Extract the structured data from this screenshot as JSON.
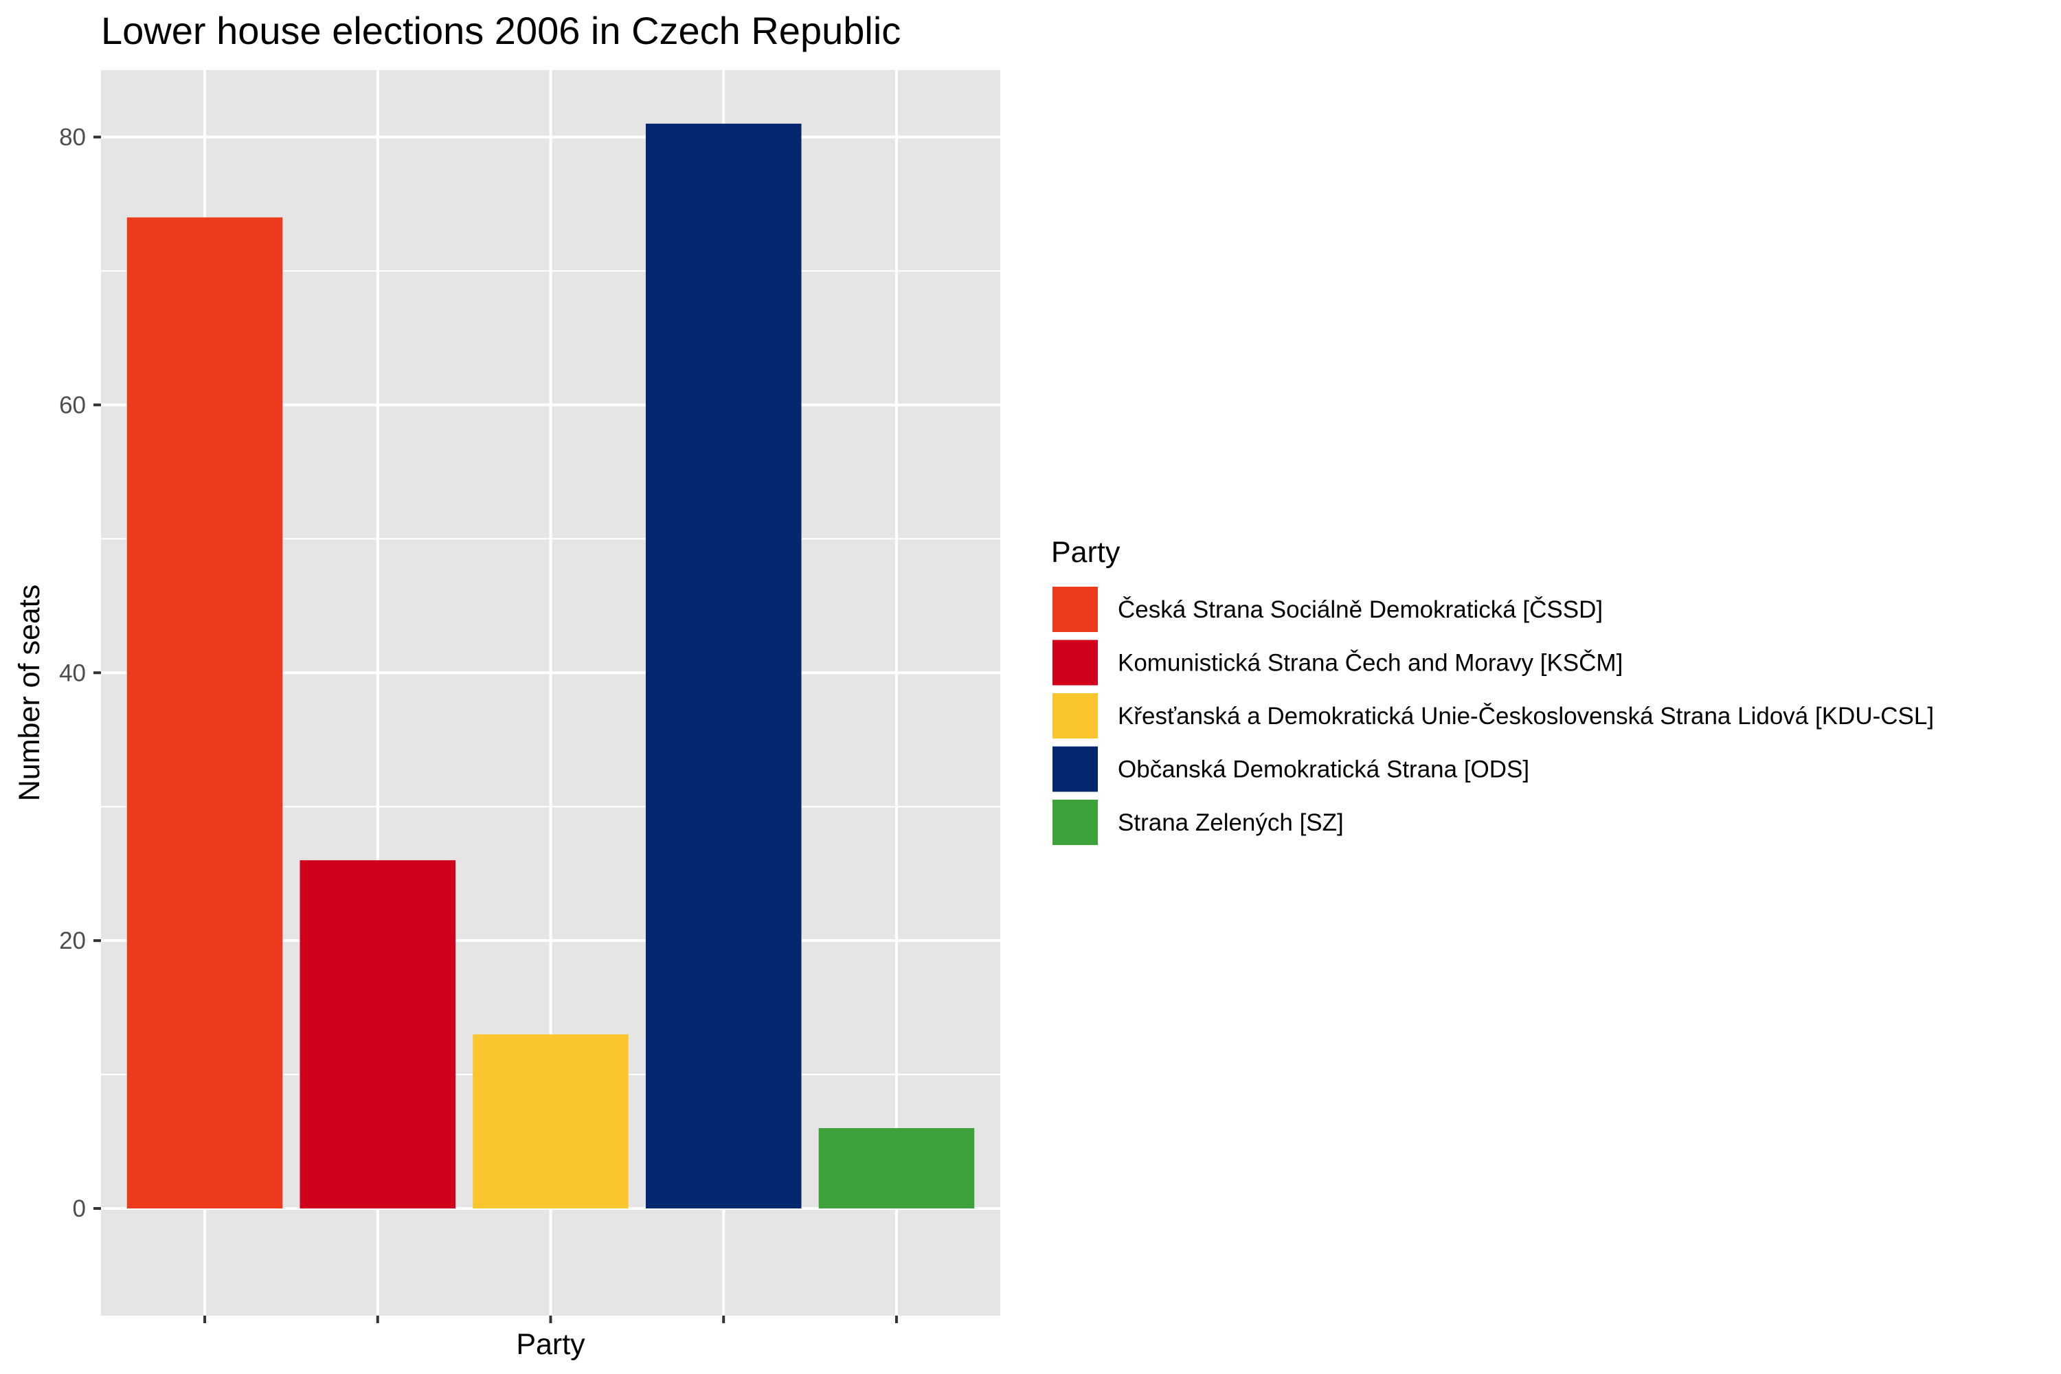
{
  "chart_data": {
    "type": "bar",
    "title": "Lower house elections 2006 in Czech Republic",
    "xlabel": "Party",
    "ylabel": "Number of seats",
    "ylim": [
      -8,
      85
    ],
    "yticks": [
      0,
      20,
      40,
      60,
      80
    ],
    "grid": true,
    "x_tick_labels_shown": false,
    "legend": {
      "title": "Party",
      "position": "right"
    },
    "categories": [
      "Česká Strana Sociálně Demokratická [ČSSD]",
      "Komunistická Strana Čech and Moravy [KSČM]",
      "Křesťanská a Demokratická Unie-Československá Strana Lidová [KDU-CSL]",
      "Občanská Demokratická Strana [ODS]",
      "Strana Zelených [SZ]"
    ],
    "values": [
      74,
      26,
      13,
      81,
      6
    ],
    "colors": [
      "#EE3A1C",
      "#D0001B",
      "#FBC52D",
      "#03286F",
      "#3EA23B"
    ]
  },
  "theme": {
    "panel_background": "#E5E5E5",
    "grid_color": "#FFFFFF",
    "tick_color": "#333333",
    "tick_label_color": "#4D4D4D"
  }
}
